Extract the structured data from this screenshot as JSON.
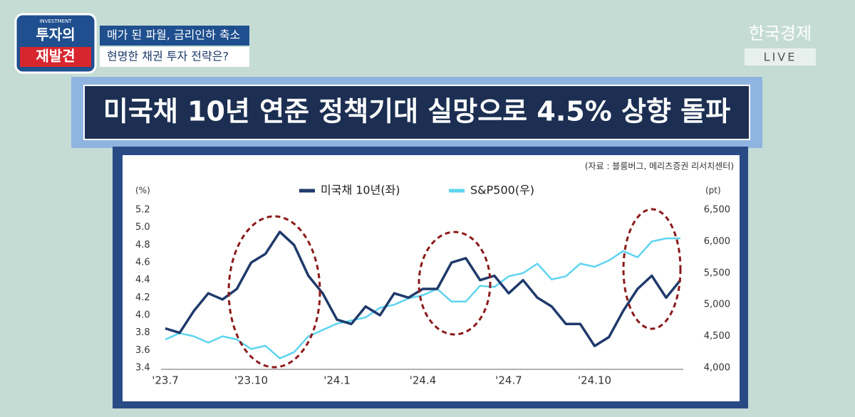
{
  "program": {
    "tag": "INVESTMENT",
    "name_line1": "투자의",
    "name_line2": "재발견",
    "headline_line1": "매가 된 파월, 금리인하 축소",
    "headline_line2": "현명한 채권 투자 전략은?"
  },
  "broadcaster": {
    "name": "한국경제",
    "live": "LIVE"
  },
  "banner_title": "미국채 10년 연준 정책기대 실망으로 4.5% 상향 돌파",
  "chart_data": {
    "type": "line",
    "source": "(자료 : 블룸버그, 메리츠증권 리서치센터)",
    "y_label": "(%)",
    "y2_label": "(pt)",
    "categories": [
      "'23.7",
      null,
      null,
      null,
      null,
      null,
      "'23.10",
      null,
      null,
      null,
      null,
      null,
      "'24.1",
      null,
      null,
      null,
      null,
      null,
      "'24.4",
      null,
      null,
      null,
      null,
      null,
      "'24.7",
      null,
      null,
      null,
      null,
      null,
      "'24.10",
      null,
      null,
      null,
      null,
      null,
      null
    ],
    "series": [
      {
        "name": "미국채 10년(좌)",
        "color": "#1f3a6b",
        "values": [
          3.85,
          3.8,
          4.05,
          4.25,
          4.18,
          4.3,
          4.6,
          4.7,
          4.95,
          4.8,
          4.45,
          4.25,
          3.95,
          3.9,
          4.1,
          4.0,
          4.25,
          4.2,
          4.3,
          4.3,
          4.6,
          4.65,
          4.4,
          4.45,
          4.25,
          4.4,
          4.2,
          4.1,
          3.9,
          3.9,
          3.65,
          3.75,
          4.05,
          4.3,
          4.45,
          4.2,
          4.4
        ]
      },
      {
        "name": "S&P500(우)",
        "color": "#5ed4f0",
        "axis": "y2",
        "values": [
          4450,
          4550,
          4500,
          4400,
          4500,
          4450,
          4300,
          4350,
          4150,
          4250,
          4500,
          4600,
          4700,
          4750,
          4800,
          4950,
          5000,
          5100,
          5150,
          5250,
          5050,
          5050,
          5300,
          5280,
          5450,
          5500,
          5650,
          5400,
          5450,
          5650,
          5600,
          5700,
          5850,
          5750,
          6000,
          6050,
          6050
        ]
      }
    ],
    "ylim": [
      3.4,
      5.2
    ],
    "yticks": [
      3.4,
      3.6,
      3.8,
      {
        "value": 4,
        "label": "4.0"
      },
      4.2,
      4.4,
      4.6,
      4.8,
      {
        "value": 5,
        "label": "5.0"
      },
      5.2
    ],
    "y2lim": [
      4000,
      6500
    ],
    "y2ticks": [
      {
        "value": 4000,
        "label": "4,000"
      },
      {
        "value": 4500,
        "label": "4,500"
      },
      {
        "value": 5000,
        "label": "5,000"
      },
      {
        "value": 5500,
        "label": "5,500"
      },
      {
        "value": 6000,
        "label": "6,000"
      },
      {
        "value": 6500,
        "label": "6,500"
      }
    ],
    "legend": "top"
  }
}
